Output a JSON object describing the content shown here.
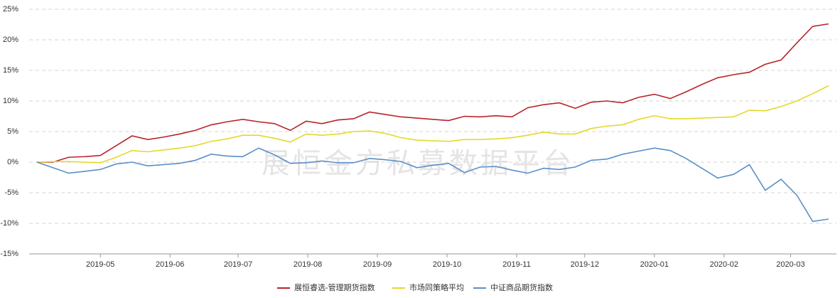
{
  "chart_data": {
    "type": "line",
    "watermark": "展恒金方私募数据平台",
    "x": [
      0,
      1,
      2,
      3,
      4,
      5,
      6,
      7,
      8,
      9,
      10,
      11,
      12,
      13,
      14,
      15,
      16,
      17,
      18,
      19,
      20,
      21,
      22,
      23,
      24,
      25,
      26,
      27,
      28,
      29,
      30,
      31,
      32,
      33,
      34,
      35,
      36,
      37,
      38,
      39,
      40,
      41,
      42,
      43,
      44,
      45,
      46,
      47,
      48,
      49,
      50
    ],
    "xlim": [
      -0.5,
      50.5
    ],
    "xticks": [
      {
        "value": 4,
        "label": "2019-05"
      },
      {
        "value": 8.4,
        "label": "2019-06"
      },
      {
        "value": 12.7,
        "label": "2019-07"
      },
      {
        "value": 17.1,
        "label": "2019-08"
      },
      {
        "value": 21.5,
        "label": "2019-09"
      },
      {
        "value": 25.9,
        "label": "2019-10"
      },
      {
        "value": 30.3,
        "label": "2019-11"
      },
      {
        "value": 34.6,
        "label": "2019-12"
      },
      {
        "value": 39,
        "label": "2020-01"
      },
      {
        "value": 43.4,
        "label": "2020-02"
      },
      {
        "value": 47.6,
        "label": "2020-03"
      }
    ],
    "ylim": [
      -15,
      25
    ],
    "yticks": [
      {
        "value": -15,
        "label": "-15%"
      },
      {
        "value": -10,
        "label": "-10%"
      },
      {
        "value": -5,
        "label": "-5%"
      },
      {
        "value": 0,
        "label": "0%"
      },
      {
        "value": 5,
        "label": "5%"
      },
      {
        "value": 10,
        "label": "10%"
      },
      {
        "value": 15,
        "label": "15%"
      },
      {
        "value": 20,
        "label": "20%"
      },
      {
        "value": 25,
        "label": "25%"
      }
    ],
    "grid": true,
    "legend": "bottom",
    "series": [
      {
        "name": "展恒睿选-管理期货指数",
        "color": "#b8232b",
        "values": [
          0,
          0,
          0.8,
          0.9,
          1.1,
          2.7,
          4.3,
          3.7,
          4.1,
          4.6,
          5.2,
          6.1,
          6.6,
          7.0,
          6.6,
          6.3,
          5.2,
          6.7,
          6.3,
          6.9,
          7.1,
          8.2,
          7.8,
          7.4,
          7.2,
          7.0,
          6.8,
          7.5,
          7.4,
          7.6,
          7.4,
          8.9,
          9.4,
          9.7,
          8.8,
          9.8,
          10.0,
          9.7,
          10.6,
          11.1,
          10.4,
          11.5,
          12.7,
          13.8,
          14.3,
          14.7,
          16.0,
          16.7,
          19.5,
          22.2,
          22.6
        ]
      },
      {
        "name": "市场同策略平均",
        "color": "#e3d92a",
        "values": [
          0,
          0.1,
          0.1,
          0,
          -0.1,
          0.8,
          1.9,
          1.7,
          2.0,
          2.3,
          2.7,
          3.4,
          3.8,
          4.4,
          4.4,
          3.9,
          3.3,
          4.6,
          4.4,
          4.6,
          5.0,
          5.1,
          4.7,
          4.0,
          3.6,
          3.5,
          3.4,
          3.7,
          3.7,
          3.8,
          4.0,
          4.4,
          4.9,
          4.6,
          4.6,
          5.5,
          5.9,
          6.1,
          7.0,
          7.6,
          7.1,
          7.1,
          7.2,
          7.3,
          7.4,
          8.5,
          8.4,
          9.1,
          10.0,
          11.2,
          12.5
        ]
      },
      {
        "name": "中证商品期货指数",
        "color": "#5b8fc8",
        "values": [
          0,
          -0.9,
          -1.8,
          -1.5,
          -1.2,
          -0.3,
          0,
          -0.6,
          -0.4,
          -0.2,
          0.3,
          1.3,
          1.0,
          0.9,
          2.3,
          1.2,
          -0.2,
          -0.1,
          0.2,
          -0.1,
          -0.1,
          0.6,
          0.4,
          0.1,
          -0.9,
          -0.5,
          -0.2,
          -1.7,
          -0.8,
          -0.7,
          -1.3,
          -1.8,
          -1.0,
          -1.2,
          -0.8,
          0.3,
          0.5,
          1.3,
          1.8,
          2.3,
          1.9,
          0.6,
          -1.0,
          -2.6,
          -2.0,
          -0.4,
          -4.6,
          -2.8,
          -5.4,
          -9.7,
          -9.3
        ]
      }
    ]
  }
}
